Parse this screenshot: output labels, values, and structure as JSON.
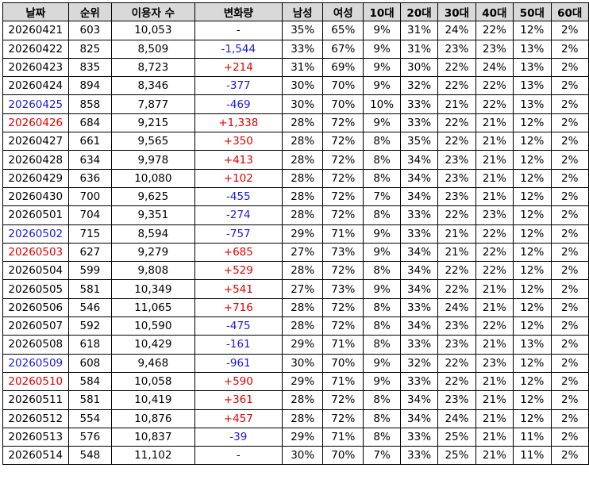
{
  "columns": [
    "날짜",
    "순위",
    "이용자 수",
    "변화량",
    "남성",
    "여성",
    "10대",
    "20대",
    "30대",
    "40대",
    "50대",
    "60대"
  ],
  "colors": {
    "positive": "#e00000",
    "negative": "#1a1adf",
    "saturday": "#1a1adf",
    "sunday": "#e00000"
  },
  "rows": [
    {
      "date": "20260421",
      "day": "",
      "rank": "603",
      "users": "10,053",
      "change": "-",
      "male": "35%",
      "female": "65%",
      "a10": "9%",
      "a20": "31%",
      "a30": "24%",
      "a40": "22%",
      "a50": "12%",
      "a60": "2%"
    },
    {
      "date": "20260422",
      "day": "",
      "rank": "825",
      "users": "8,509",
      "change": "-1,544",
      "male": "33%",
      "female": "67%",
      "a10": "9%",
      "a20": "31%",
      "a30": "23%",
      "a40": "23%",
      "a50": "13%",
      "a60": "2%"
    },
    {
      "date": "20260423",
      "day": "",
      "rank": "835",
      "users": "8,723",
      "change": "+214",
      "male": "31%",
      "female": "69%",
      "a10": "9%",
      "a20": "30%",
      "a30": "22%",
      "a40": "24%",
      "a50": "13%",
      "a60": "2%"
    },
    {
      "date": "20260424",
      "day": "",
      "rank": "894",
      "users": "8,346",
      "change": "-377",
      "male": "30%",
      "female": "70%",
      "a10": "9%",
      "a20": "32%",
      "a30": "22%",
      "a40": "22%",
      "a50": "13%",
      "a60": "2%"
    },
    {
      "date": "20260425",
      "day": "sat",
      "rank": "858",
      "users": "7,877",
      "change": "-469",
      "male": "30%",
      "female": "70%",
      "a10": "10%",
      "a20": "33%",
      "a30": "21%",
      "a40": "22%",
      "a50": "13%",
      "a60": "2%"
    },
    {
      "date": "20260426",
      "day": "sun",
      "rank": "684",
      "users": "9,215",
      "change": "+1,338",
      "male": "28%",
      "female": "72%",
      "a10": "9%",
      "a20": "33%",
      "a30": "22%",
      "a40": "21%",
      "a50": "12%",
      "a60": "2%"
    },
    {
      "date": "20260427",
      "day": "",
      "rank": "661",
      "users": "9,565",
      "change": "+350",
      "male": "28%",
      "female": "72%",
      "a10": "8%",
      "a20": "35%",
      "a30": "22%",
      "a40": "21%",
      "a50": "12%",
      "a60": "2%"
    },
    {
      "date": "20260428",
      "day": "",
      "rank": "634",
      "users": "9,978",
      "change": "+413",
      "male": "28%",
      "female": "72%",
      "a10": "8%",
      "a20": "34%",
      "a30": "23%",
      "a40": "21%",
      "a50": "12%",
      "a60": "2%"
    },
    {
      "date": "20260429",
      "day": "",
      "rank": "636",
      "users": "10,080",
      "change": "+102",
      "male": "28%",
      "female": "72%",
      "a10": "8%",
      "a20": "34%",
      "a30": "23%",
      "a40": "21%",
      "a50": "12%",
      "a60": "2%"
    },
    {
      "date": "20260430",
      "day": "",
      "rank": "700",
      "users": "9,625",
      "change": "-455",
      "male": "28%",
      "female": "72%",
      "a10": "7%",
      "a20": "34%",
      "a30": "23%",
      "a40": "21%",
      "a50": "12%",
      "a60": "2%"
    },
    {
      "date": "20260501",
      "day": "",
      "rank": "704",
      "users": "9,351",
      "change": "-274",
      "male": "28%",
      "female": "72%",
      "a10": "8%",
      "a20": "33%",
      "a30": "22%",
      "a40": "23%",
      "a50": "12%",
      "a60": "2%"
    },
    {
      "date": "20260502",
      "day": "sat",
      "rank": "715",
      "users": "8,594",
      "change": "-757",
      "male": "29%",
      "female": "71%",
      "a10": "9%",
      "a20": "33%",
      "a30": "21%",
      "a40": "22%",
      "a50": "12%",
      "a60": "2%"
    },
    {
      "date": "20260503",
      "day": "sun",
      "rank": "627",
      "users": "9,279",
      "change": "+685",
      "male": "27%",
      "female": "73%",
      "a10": "9%",
      "a20": "34%",
      "a30": "21%",
      "a40": "22%",
      "a50": "12%",
      "a60": "2%"
    },
    {
      "date": "20260504",
      "day": "",
      "rank": "599",
      "users": "9,808",
      "change": "+529",
      "male": "28%",
      "female": "72%",
      "a10": "8%",
      "a20": "34%",
      "a30": "22%",
      "a40": "22%",
      "a50": "12%",
      "a60": "2%"
    },
    {
      "date": "20260505",
      "day": "",
      "rank": "581",
      "users": "10,349",
      "change": "+541",
      "male": "27%",
      "female": "73%",
      "a10": "9%",
      "a20": "34%",
      "a30": "22%",
      "a40": "21%",
      "a50": "12%",
      "a60": "2%"
    },
    {
      "date": "20260506",
      "day": "",
      "rank": "546",
      "users": "11,065",
      "change": "+716",
      "male": "28%",
      "female": "72%",
      "a10": "8%",
      "a20": "33%",
      "a30": "24%",
      "a40": "21%",
      "a50": "12%",
      "a60": "2%"
    },
    {
      "date": "20260507",
      "day": "",
      "rank": "592",
      "users": "10,590",
      "change": "-475",
      "male": "28%",
      "female": "72%",
      "a10": "8%",
      "a20": "34%",
      "a30": "23%",
      "a40": "22%",
      "a50": "12%",
      "a60": "2%"
    },
    {
      "date": "20260508",
      "day": "",
      "rank": "618",
      "users": "10,429",
      "change": "-161",
      "male": "29%",
      "female": "71%",
      "a10": "8%",
      "a20": "33%",
      "a30": "23%",
      "a40": "21%",
      "a50": "13%",
      "a60": "2%"
    },
    {
      "date": "20260509",
      "day": "sat",
      "rank": "608",
      "users": "9,468",
      "change": "-961",
      "male": "30%",
      "female": "70%",
      "a10": "9%",
      "a20": "32%",
      "a30": "22%",
      "a40": "23%",
      "a50": "12%",
      "a60": "2%"
    },
    {
      "date": "20260510",
      "day": "sun",
      "rank": "584",
      "users": "10,058",
      "change": "+590",
      "male": "29%",
      "female": "71%",
      "a10": "9%",
      "a20": "33%",
      "a30": "22%",
      "a40": "21%",
      "a50": "12%",
      "a60": "2%"
    },
    {
      "date": "20260511",
      "day": "",
      "rank": "581",
      "users": "10,419",
      "change": "+361",
      "male": "28%",
      "female": "72%",
      "a10": "8%",
      "a20": "34%",
      "a30": "23%",
      "a40": "21%",
      "a50": "12%",
      "a60": "2%"
    },
    {
      "date": "20260512",
      "day": "",
      "rank": "554",
      "users": "10,876",
      "change": "+457",
      "male": "28%",
      "female": "72%",
      "a10": "8%",
      "a20": "34%",
      "a30": "24%",
      "a40": "21%",
      "a50": "12%",
      "a60": "2%"
    },
    {
      "date": "20260513",
      "day": "",
      "rank": "576",
      "users": "10,837",
      "change": "-39",
      "male": "29%",
      "female": "71%",
      "a10": "8%",
      "a20": "33%",
      "a30": "25%",
      "a40": "21%",
      "a50": "11%",
      "a60": "2%"
    },
    {
      "date": "20260514",
      "day": "",
      "rank": "548",
      "users": "11,102",
      "change": "-",
      "male": "30%",
      "female": "70%",
      "a10": "7%",
      "a20": "33%",
      "a30": "25%",
      "a40": "21%",
      "a50": "11%",
      "a60": "2%"
    }
  ]
}
